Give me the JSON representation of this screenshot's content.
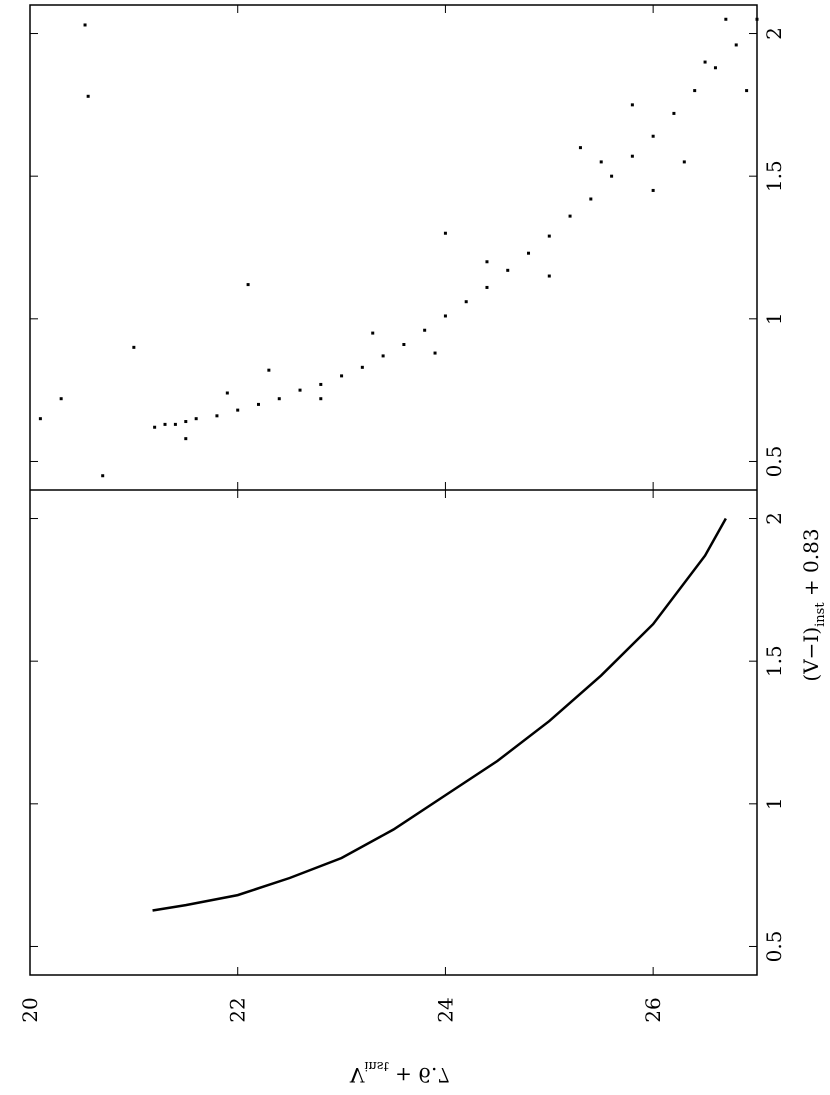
{
  "chart_data": [
    {
      "type": "scatter",
      "series": [
        {
          "color": "#000000",
          "x": [
            21.2,
            21.3,
            21.4,
            21.5,
            21.6,
            21.8,
            22.0,
            22.2,
            22.4,
            22.6,
            22.8,
            23.0,
            23.2,
            23.4,
            23.6,
            23.8,
            24.0,
            24.2,
            24.4,
            24.6,
            24.8,
            25.0,
            25.2,
            25.4,
            25.6,
            25.8,
            26.0,
            26.2,
            26.4,
            26.6,
            26.8,
            27.0,
            21.5,
            21.9,
            22.3,
            22.8,
            23.3,
            23.9,
            24.4,
            25.0,
            25.5,
            26.0,
            26.5,
            26.9,
            25.3,
            25.8,
            26.3,
            26.7,
            20.1,
            20.3,
            20.7,
            21.0,
            22.1,
            24.0,
            20.53,
            20.56
          ],
          "values": [
            0.62,
            0.63,
            0.63,
            0.64,
            0.65,
            0.66,
            0.68,
            0.7,
            0.72,
            0.75,
            0.77,
            0.8,
            0.83,
            0.87,
            0.91,
            0.96,
            1.01,
            1.06,
            1.11,
            1.17,
            1.23,
            1.29,
            1.36,
            1.42,
            1.5,
            1.57,
            1.64,
            1.72,
            1.8,
            1.88,
            1.96,
            2.05,
            0.58,
            0.74,
            0.82,
            0.72,
            0.95,
            0.88,
            1.2,
            1.15,
            1.55,
            1.45,
            1.9,
            1.8,
            1.6,
            1.75,
            1.55,
            2.05,
            0.65,
            0.72,
            0.45,
            0.9,
            1.12,
            1.3,
            2.03,
            1.78
          ]
        }
      ],
      "xlim": [
        20,
        27
      ],
      "xticks": [
        20,
        22,
        24,
        26
      ],
      "ylim": [
        0.4,
        2.1
      ],
      "yticks": [
        0.5,
        1,
        1.5,
        2
      ],
      "ylabel": {
        "main": "(V−I)",
        "sub": "inst",
        "tail": " + 0.83"
      }
    },
    {
      "type": "line",
      "series": [
        {
          "color": "#000000",
          "x": [
            21.18,
            21.5,
            22,
            22.5,
            23,
            23.5,
            24,
            24.5,
            25,
            25.5,
            26,
            26.5,
            26.7
          ],
          "values": [
            0.626,
            0.645,
            0.68,
            0.74,
            0.81,
            0.91,
            1.03,
            1.15,
            1.29,
            1.45,
            1.63,
            1.87,
            2.0
          ]
        }
      ],
      "xlim": [
        20,
        27
      ],
      "xticks": [
        20,
        22,
        24,
        26
      ],
      "ylim": [
        0.4,
        2.1
      ],
      "yticks": [
        0.5,
        1,
        1.5,
        2
      ],
      "xlabel": {
        "main": "V",
        "sub": "inst",
        "tail": " + 6.7"
      }
    }
  ]
}
